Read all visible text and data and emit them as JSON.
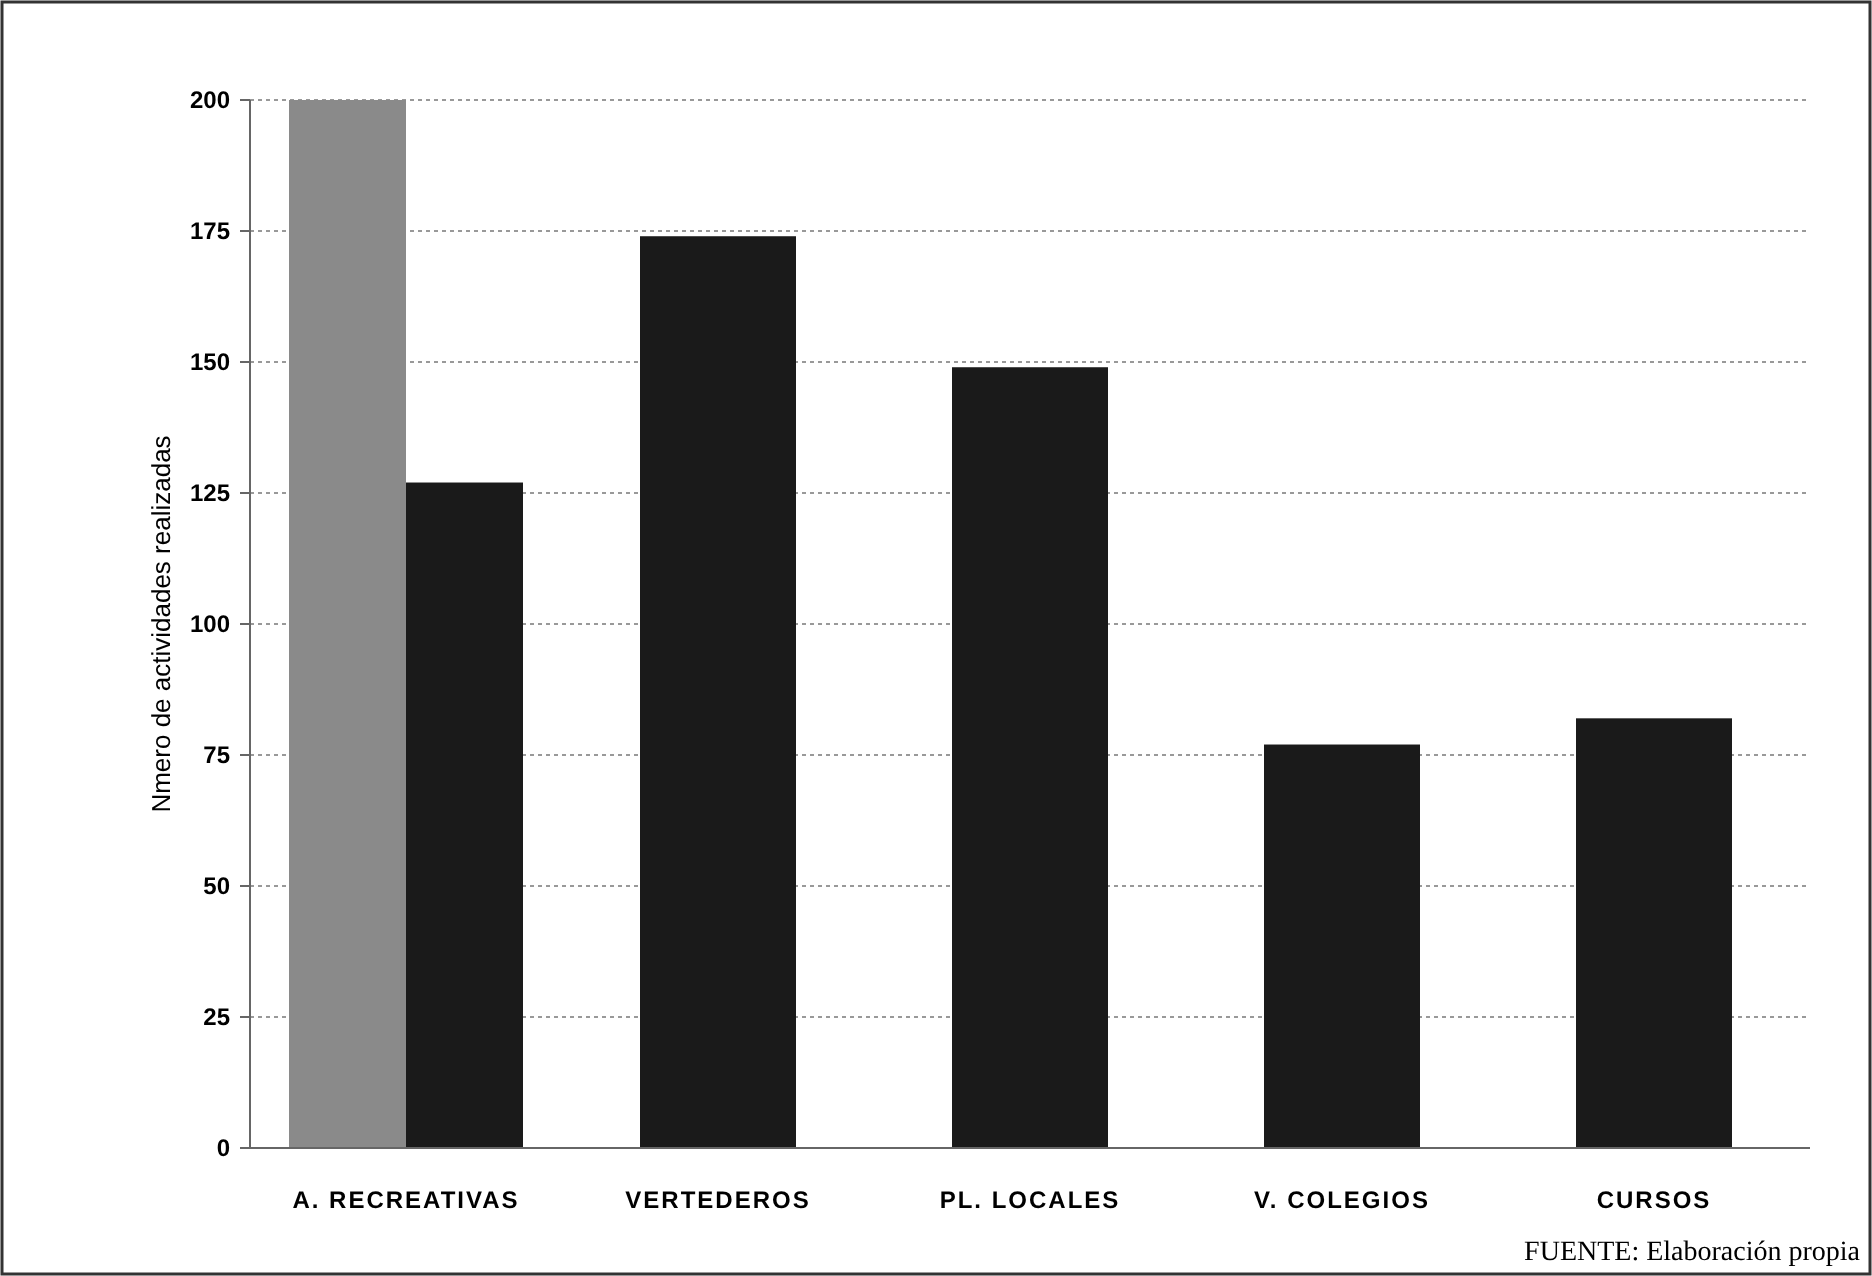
{
  "chart_data": {
    "type": "bar",
    "categories": [
      "A. RECREATIVAS",
      "VERTEDEROS",
      "PL. LOCALES",
      "V. COLEGIOS",
      "CURSOS"
    ],
    "series": [
      {
        "color": "#8a8a8a",
        "values": [
          200,
          null,
          null,
          null,
          null
        ]
      },
      {
        "color": "#1a1a1a",
        "values": [
          127,
          174,
          149,
          77,
          82
        ]
      }
    ],
    "ylabel": "Nmero de actividades realizadas",
    "ylim": [
      0,
      200
    ],
    "yticks": [
      0,
      25,
      50,
      75,
      100,
      125,
      150,
      175,
      200
    ],
    "grid": "y",
    "annotations": [
      "FUENTE: Elaboración propia"
    ]
  }
}
